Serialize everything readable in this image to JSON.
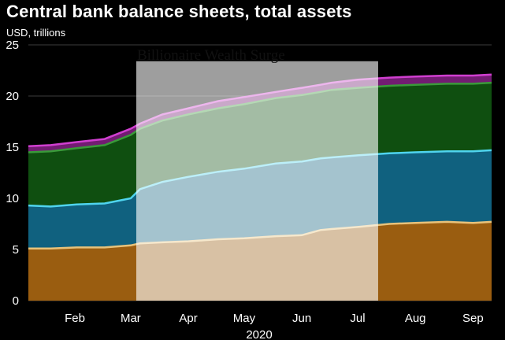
{
  "chart_data": {
    "type": "area",
    "title": "Central bank balance sheets, total assets",
    "subtitle": "USD, trillions",
    "xlabel": "2020",
    "ylabel": "",
    "ylim": [
      0,
      25
    ],
    "yticks": [
      0,
      5,
      10,
      15,
      20,
      25
    ],
    "x_ticks": [
      "Feb",
      "Mar",
      "Apr",
      "May",
      "Jun",
      "Jul",
      "Aug",
      "Sep"
    ],
    "x": [
      "2020-01-20",
      "2020-02-01",
      "2020-02-15",
      "2020-03-01",
      "2020-03-15",
      "2020-03-20",
      "2020-04-01",
      "2020-04-15",
      "2020-05-01",
      "2020-05-15",
      "2020-06-01",
      "2020-06-15",
      "2020-06-25",
      "2020-07-01",
      "2020-07-15",
      "2020-08-01",
      "2020-08-15",
      "2020-09-01",
      "2020-09-15",
      "2020-09-25"
    ],
    "stacked_totals": true,
    "grid": true,
    "series": [
      {
        "color": "#9a5d10",
        "line_color": "#e8c27a",
        "values": [
          5.1,
          5.1,
          5.2,
          5.2,
          5.4,
          5.6,
          5.7,
          5.8,
          6.0,
          6.1,
          6.3,
          6.4,
          6.9,
          7.0,
          7.2,
          7.5,
          7.6,
          7.7,
          7.6,
          7.7
        ]
      },
      {
        "color": "#10617f",
        "line_color": "#4fd4ee",
        "values": [
          9.3,
          9.2,
          9.4,
          9.5,
          10.0,
          10.9,
          11.6,
          12.1,
          12.6,
          12.9,
          13.4,
          13.6,
          13.9,
          14.0,
          14.2,
          14.4,
          14.5,
          14.6,
          14.6,
          14.7
        ]
      },
      {
        "color": "#0f4f10",
        "line_color": "#3a9a3a",
        "values": [
          14.5,
          14.6,
          14.9,
          15.2,
          16.2,
          16.8,
          17.6,
          18.2,
          18.8,
          19.2,
          19.8,
          20.1,
          20.4,
          20.6,
          20.8,
          21.0,
          21.1,
          21.2,
          21.2,
          21.3
        ]
      },
      {
        "color": "#721c72",
        "line_color": "#d03fd0",
        "values": [
          15.1,
          15.2,
          15.5,
          15.8,
          16.8,
          17.3,
          18.2,
          18.8,
          19.5,
          19.9,
          20.4,
          20.8,
          21.1,
          21.3,
          21.6,
          21.8,
          21.9,
          22.0,
          22.0,
          22.1
        ]
      }
    ],
    "overlay": {
      "label": "Billionaire Wealth Surge",
      "x_start": "2020-03-18",
      "x_end": "2020-07-26",
      "y_top": 23.4,
      "color": "#ffffff",
      "opacity": 0.62
    }
  }
}
